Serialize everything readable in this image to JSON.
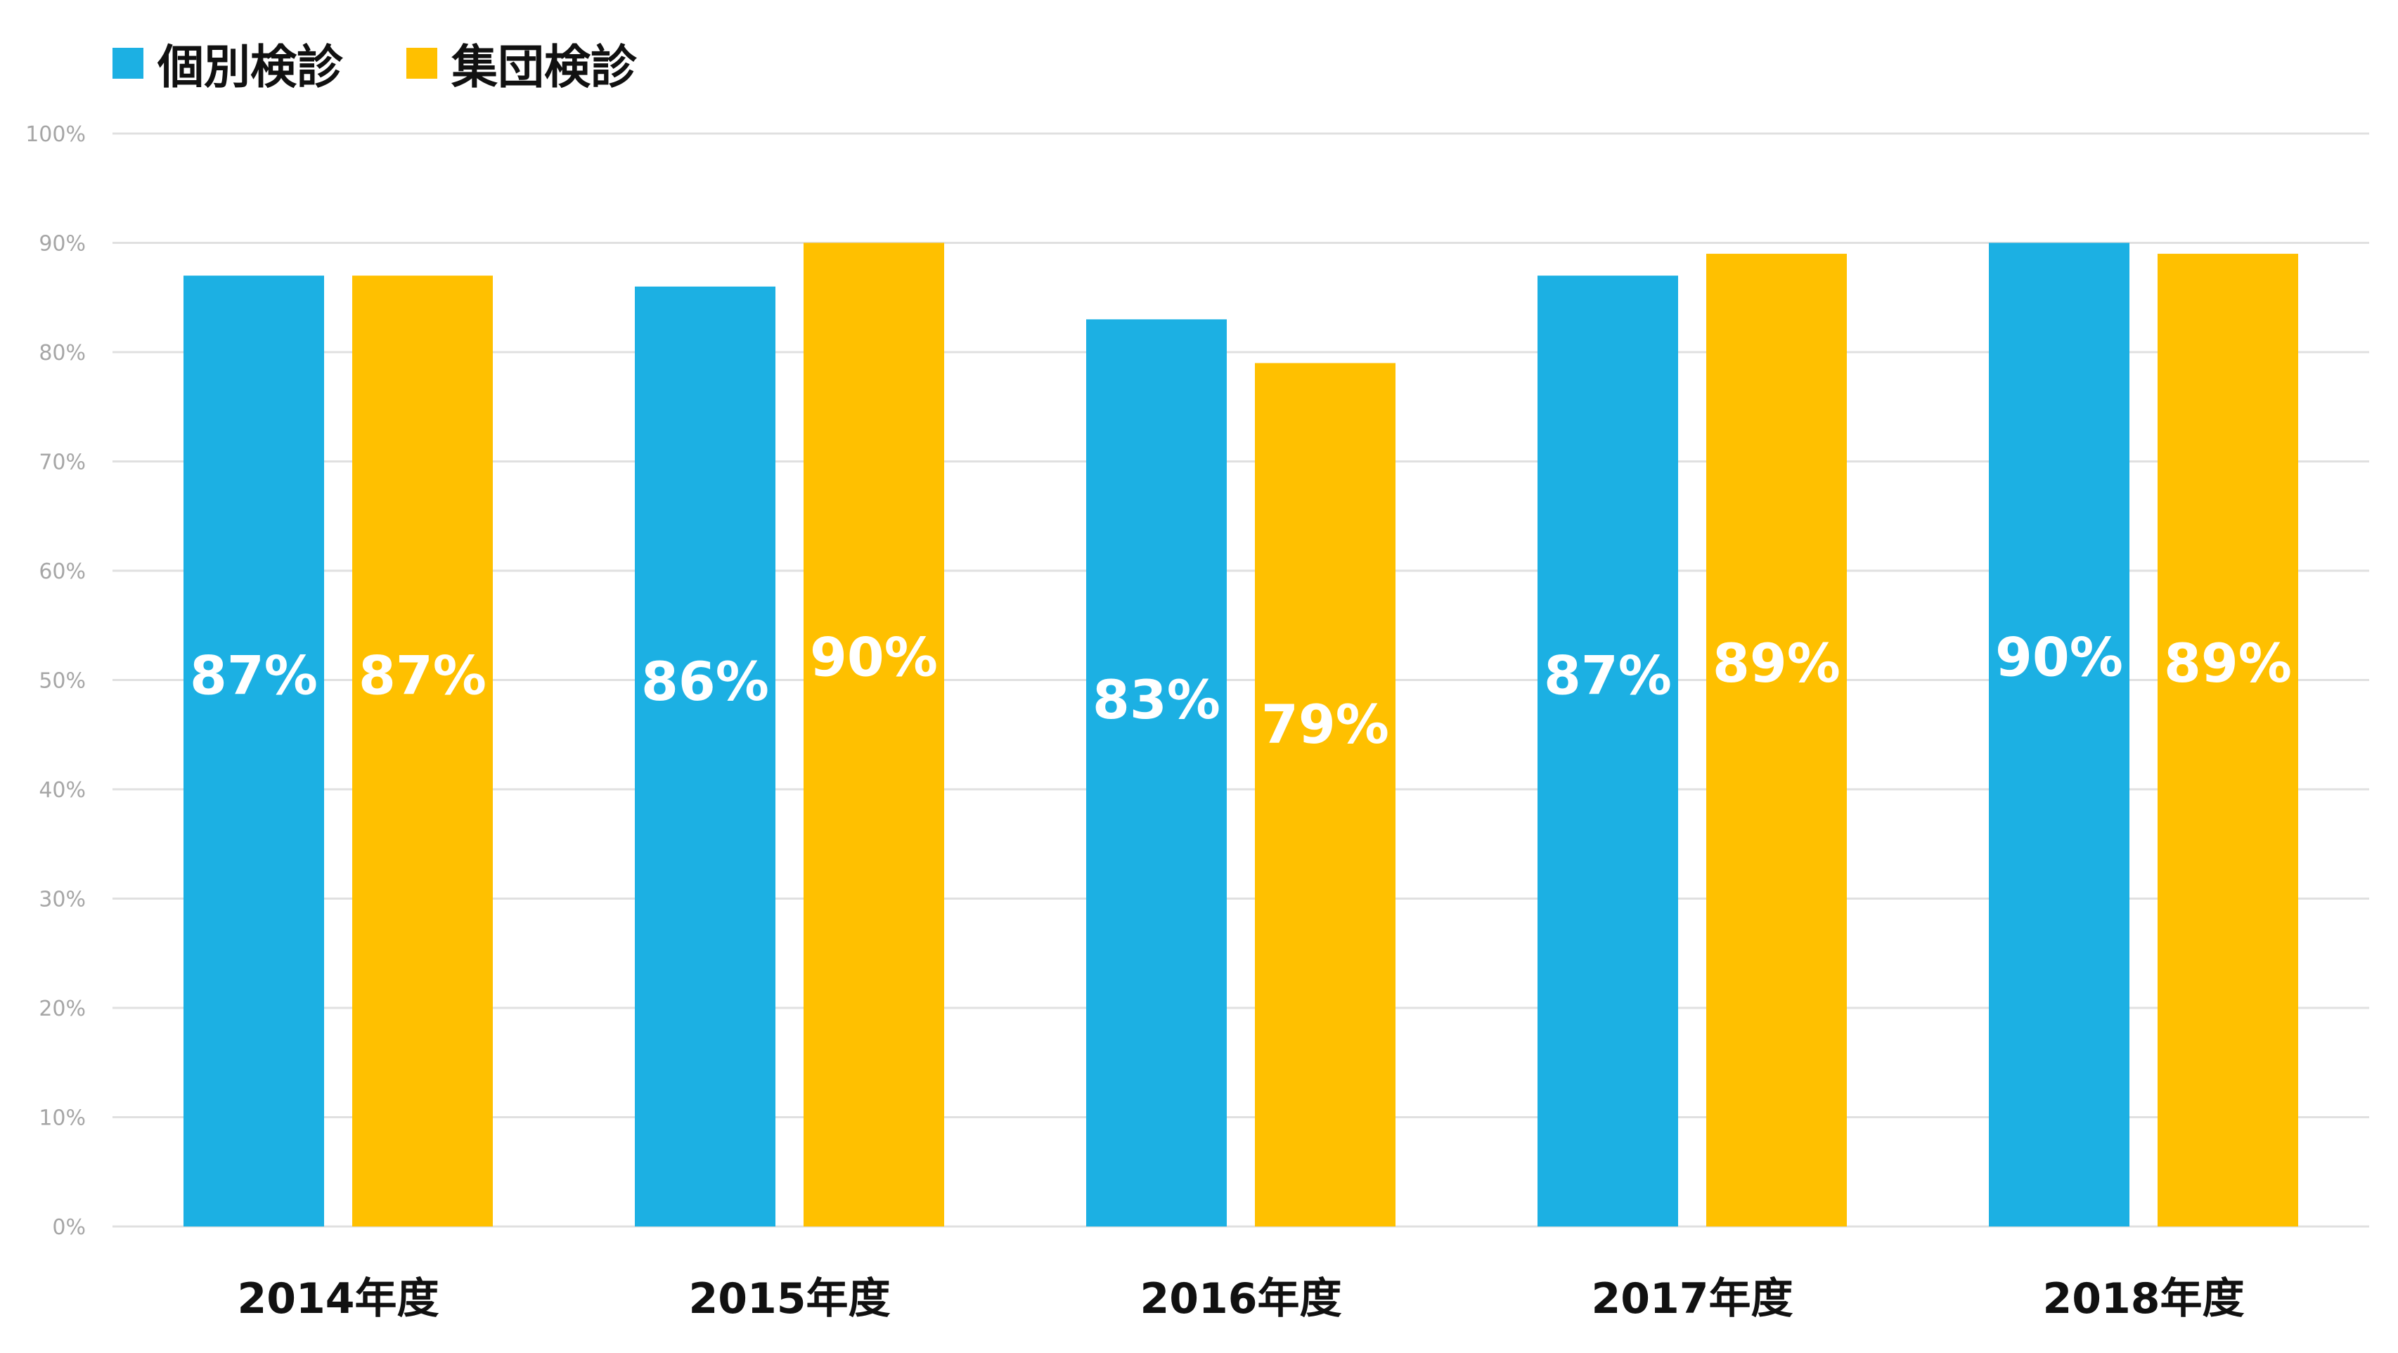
{
  "chart_data": {
    "type": "bar",
    "title": "",
    "xlabel": "",
    "ylabel": "",
    "categories": [
      "2014年度",
      "2015年度",
      "2016年度",
      "2017年度",
      "2018年度"
    ],
    "series": [
      {
        "name": "個別検診",
        "color": "#1CB0E3",
        "values": [
          87,
          86,
          83,
          87,
          90
        ],
        "labels": [
          "87%",
          "86%",
          "83%",
          "87%",
          "90%"
        ]
      },
      {
        "name": "集団検診",
        "color": "#FFC000",
        "values": [
          87,
          90,
          79,
          89,
          89
        ],
        "labels": [
          "87%",
          "90%",
          "79%",
          "89%",
          "89%"
        ]
      }
    ],
    "ylim": [
      0,
      100
    ],
    "yticks": [
      "0%",
      "10%",
      "20%",
      "30%",
      "40%",
      "50%",
      "60%",
      "70%",
      "80%",
      "90%",
      "100%"
    ],
    "grid": true,
    "legend_position": "top-left",
    "gridline_color": "#e0e0e0"
  }
}
